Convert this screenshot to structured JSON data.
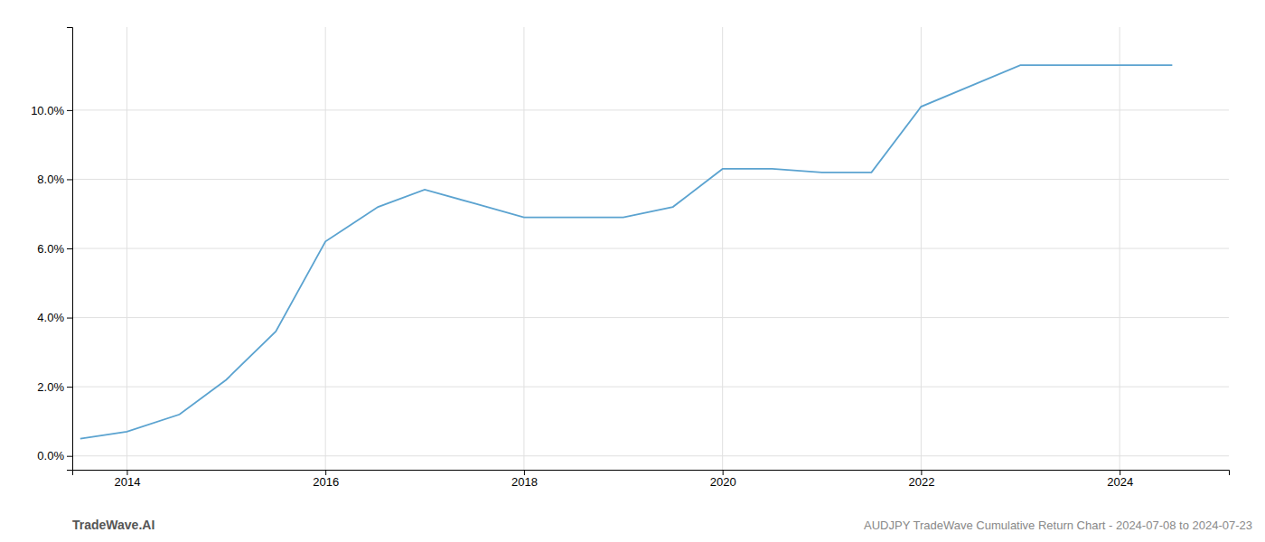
{
  "chart_data": {
    "type": "line",
    "x": [
      2013.53,
      2014.0,
      2014.53,
      2015.0,
      2015.5,
      2016.0,
      2016.53,
      2017.0,
      2017.5,
      2018.0,
      2018.5,
      2019.0,
      2019.5,
      2020.0,
      2020.5,
      2021.0,
      2021.5,
      2022.0,
      2022.5,
      2023.0,
      2023.5,
      2024.0,
      2024.53
    ],
    "values": [
      0.005,
      0.007,
      0.012,
      0.022,
      0.036,
      0.062,
      0.072,
      0.077,
      0.073,
      0.069,
      0.069,
      0.069,
      0.072,
      0.083,
      0.083,
      0.082,
      0.082,
      0.101,
      0.107,
      0.113,
      0.113,
      0.113,
      0.113
    ],
    "color": "#5ba3d0",
    "xlim": [
      2013.45,
      2025.1
    ],
    "ylim": [
      -0.004,
      0.124
    ],
    "xticks": [
      2014,
      2016,
      2018,
      2020,
      2022,
      2024
    ],
    "yticks": [
      {
        "value": 0.0,
        "label": "0.0%"
      },
      {
        "value": 0.02,
        "label": "2.0%"
      },
      {
        "value": 0.04,
        "label": "4.0%"
      },
      {
        "value": 0.06,
        "label": "6.0%"
      },
      {
        "value": 0.08,
        "label": "8.0%"
      },
      {
        "value": 0.1,
        "label": "10.0%"
      }
    ],
    "grid": true,
    "annotations": [
      "TradeWave.AI",
      "AUDJPY TradeWave Cumulative Return Chart - 2024-07-08 to 2024-07-23"
    ]
  }
}
